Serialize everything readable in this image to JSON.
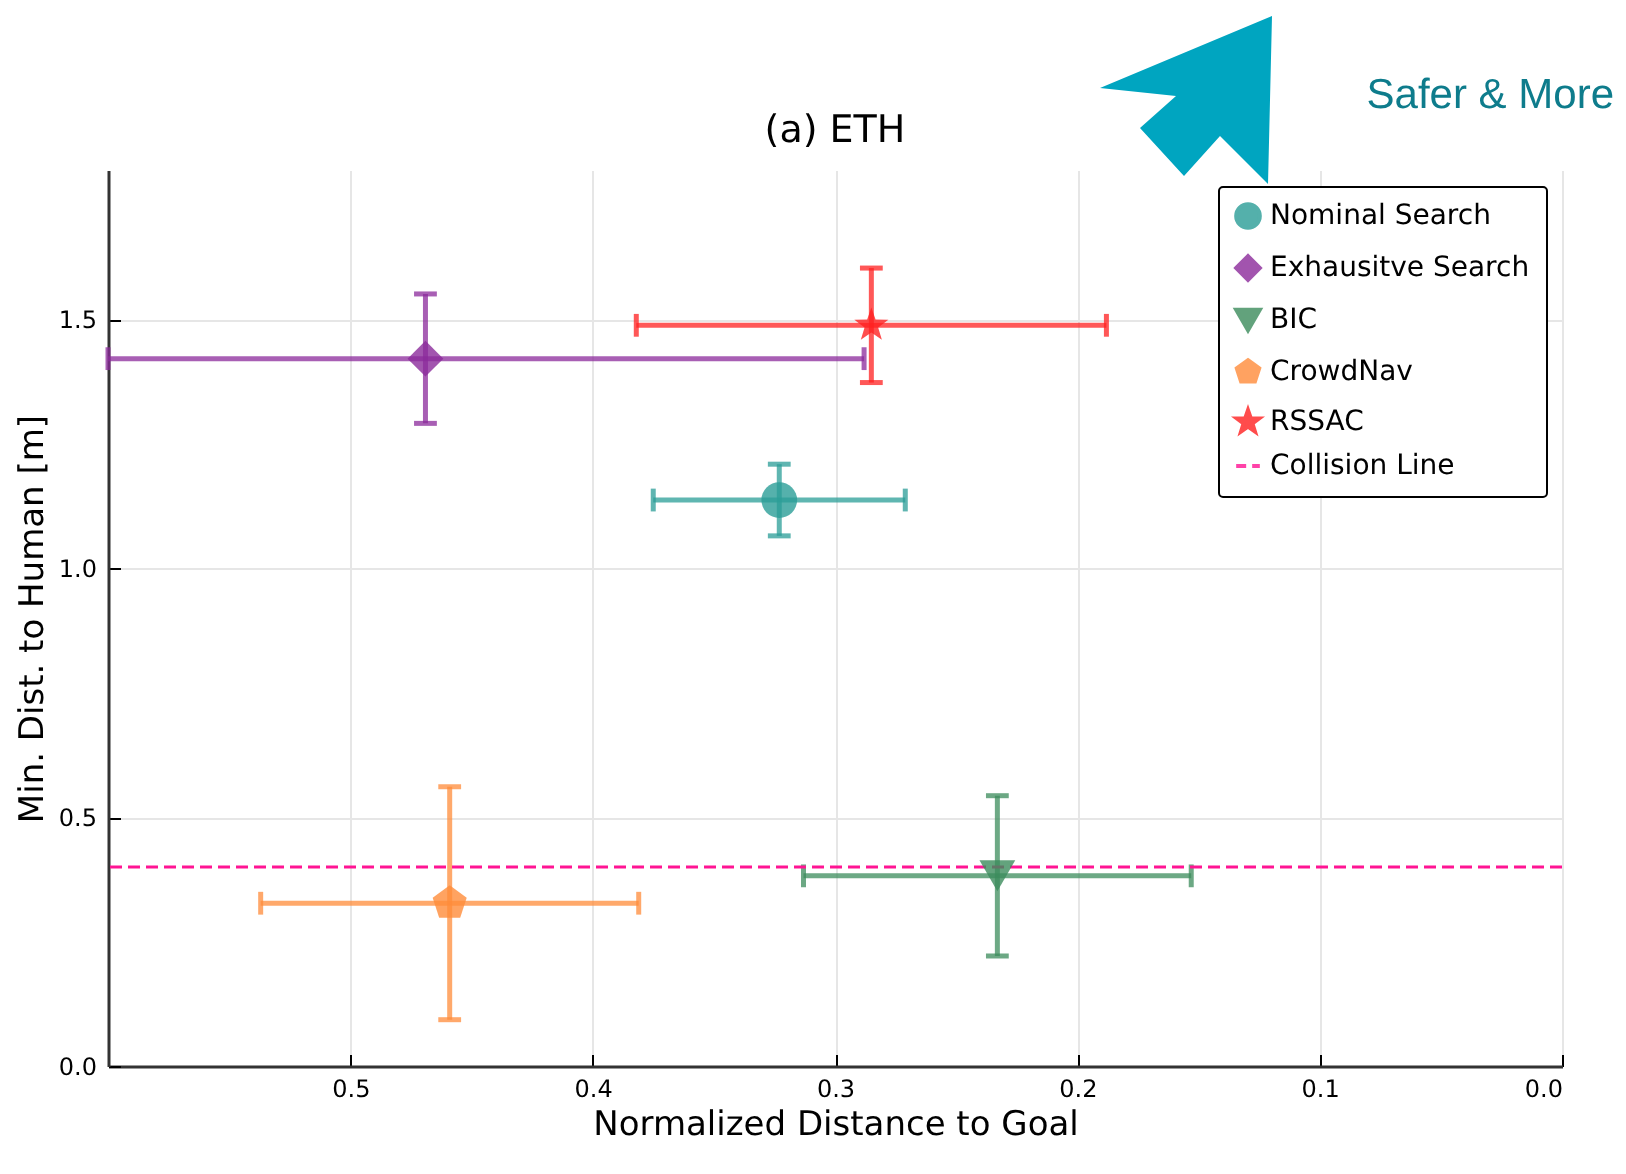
{
  "chart_data": {
    "type": "scatter",
    "title": "(a) ETH",
    "xlabel": "Normalized Distance to Goal",
    "ylabel": "Min. Dist. to Human [m]",
    "xlim": [
      0.6,
      0
    ],
    "xticks": [
      0.5,
      0.4,
      0.3,
      0.2,
      0.1,
      {
        "value": 0,
        "label": "0.0"
      }
    ],
    "ylim": [
      0,
      1.8
    ],
    "yticks": [
      {
        "value": 0,
        "label": "0.0"
      },
      0.5,
      {
        "value": 1,
        "label": "1.0"
      },
      1.5
    ],
    "grid": true,
    "legend": "top right",
    "series": [
      {
        "name": "Nominal Search",
        "color": "#2a9d97",
        "marker": "circle",
        "x": [
          0.323
        ],
        "values": [
          1.137
        ],
        "errors": [
          0.072
        ],
        "xerrors": [
          0.052
        ]
      },
      {
        "name": "Exhausitve Search",
        "color": "#8b2a9b",
        "marker": "diamond",
        "x": [
          0.469
        ],
        "values": [
          1.421
        ],
        "errors": [
          0.13
        ],
        "xerrors": [
          [
            0.288,
            0.6
          ]
        ]
      },
      {
        "name": "BIC",
        "color": "#3c8c5c",
        "marker": "triangle-down",
        "x": [
          0.233
        ],
        "values": [
          0.382
        ],
        "errors": [
          0.161
        ],
        "xerrors": [
          0.08
        ]
      },
      {
        "name": "CrowdNav",
        "color": "#ff8c3a",
        "x": [
          0.459
        ],
        "values": [
          0.327
        ],
        "errors": [
          0.234
        ],
        "xerrors": [
          0.078
        ]
      },
      {
        "name": "RSSAC",
        "color": "#ff2020",
        "marker": "star",
        "x": [
          0.285
        ],
        "values": [
          1.488
        ],
        "errors": [
          0.115
        ],
        "xerrors": [
          0.097
        ]
      }
    ],
    "ref_lines": [
      {
        "axis": "y",
        "value": 0.4,
        "label": "Collision Line",
        "color": "#ff1493",
        "line_style": "dashed"
      }
    ],
    "annotations": [
      "Safer & More"
    ]
  }
}
